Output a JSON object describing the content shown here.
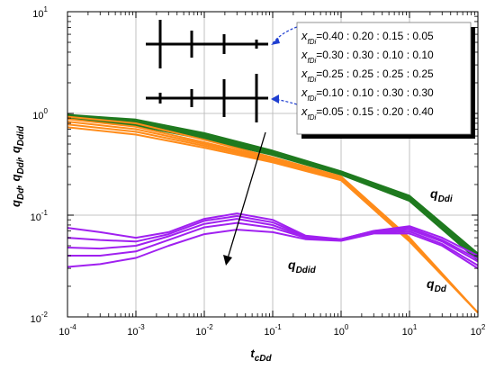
{
  "chart_data": {
    "type": "line",
    "xscale": "log",
    "yscale": "log",
    "xlim": [
      0.0001,
      100
    ],
    "ylim": [
      0.01,
      10
    ],
    "grid": true,
    "xlabel": {
      "main": "t",
      "sub": "cDd"
    },
    "ylabel": [
      {
        "main": "q",
        "sub": "Dd"
      },
      {
        "main": ", q",
        "sub": "Ddi"
      },
      {
        "main": ", q",
        "sub": "Ddid"
      }
    ],
    "x_ticks": [
      {
        "base": "10",
        "exp": "-4"
      },
      {
        "base": "10",
        "exp": "-3"
      },
      {
        "base": "10",
        "exp": "-2"
      },
      {
        "base": "10",
        "exp": "-1"
      },
      {
        "base": "10",
        "exp": "0"
      },
      {
        "base": "10",
        "exp": "1"
      },
      {
        "base": "10",
        "exp": "2"
      }
    ],
    "y_ticks": [
      {
        "base": "10",
        "exp": "-2"
      },
      {
        "base": "10",
        "exp": "-1"
      },
      {
        "base": "10",
        "exp": "0"
      },
      {
        "base": "10",
        "exp": "1"
      }
    ],
    "curve_labels": {
      "q_Ddi": {
        "main": "q",
        "sub": "Ddi"
      },
      "q_Ddid": {
        "main": "q",
        "sub": "Ddid"
      },
      "q_Dd": {
        "main": "q",
        "sub": "Dd"
      }
    },
    "legend": {
      "placement": "top-right",
      "entries": [
        {
          "var": "x",
          "sub": "fDi",
          "values": "=0.40 : 0.20 : 0.15 : 0.05"
        },
        {
          "var": "x",
          "sub": "fDi",
          "values": "=0.30 : 0.30 : 0.10 : 0.10"
        },
        {
          "var": "x",
          "sub": "fDi",
          "values": "=0.25 : 0.25 : 0.25 : 0.25"
        },
        {
          "var": "x",
          "sub": "fDi",
          "values": "=0.10 : 0.10 : 0.30 : 0.30"
        },
        {
          "var": "x",
          "sub": "fDi",
          "values": "=0.05 : 0.15 : 0.20 : 0.40"
        }
      ]
    },
    "colors": {
      "q_Dd": "#ff8c1a",
      "q_Ddi": "#1f7a1f",
      "q_Ddid": "#a020f0",
      "grid": "#b3b3b3",
      "annotation_arrow": "#1f3fd1"
    },
    "series": [
      {
        "group": "q_Ddi",
        "x": [
          0.0001,
          0.001,
          0.01,
          0.1,
          1,
          10,
          100
        ],
        "y": [
          0.97,
          0.87,
          0.64,
          0.43,
          0.27,
          0.155,
          0.042
        ]
      },
      {
        "group": "q_Ddi",
        "x": [
          0.0001,
          0.001,
          0.01,
          0.1,
          1,
          10,
          100
        ],
        "y": [
          0.95,
          0.84,
          0.62,
          0.42,
          0.265,
          0.15,
          0.04
        ]
      },
      {
        "group": "q_Ddi",
        "x": [
          0.0001,
          0.001,
          0.01,
          0.1,
          1,
          10,
          100
        ],
        "y": [
          0.93,
          0.81,
          0.6,
          0.41,
          0.26,
          0.145,
          0.038
        ]
      },
      {
        "group": "q_Ddi",
        "x": [
          0.0001,
          0.001,
          0.01,
          0.1,
          1,
          10,
          100
        ],
        "y": [
          0.91,
          0.78,
          0.58,
          0.4,
          0.255,
          0.142,
          0.037
        ]
      },
      {
        "group": "q_Ddi",
        "x": [
          0.0001,
          0.001,
          0.01,
          0.1,
          1,
          10,
          100
        ],
        "y": [
          0.89,
          0.76,
          0.56,
          0.39,
          0.25,
          0.138,
          0.036
        ]
      },
      {
        "group": "q_Dd",
        "x": [
          0.0001,
          0.001,
          0.01,
          0.1,
          1,
          10,
          100
        ],
        "y": [
          0.93,
          0.8,
          0.55,
          0.37,
          0.24,
          0.06,
          0.011
        ]
      },
      {
        "group": "q_Dd",
        "x": [
          0.0001,
          0.001,
          0.01,
          0.1,
          1,
          10,
          100
        ],
        "y": [
          0.88,
          0.74,
          0.52,
          0.36,
          0.235,
          0.058,
          0.011
        ]
      },
      {
        "group": "q_Dd",
        "x": [
          0.0001,
          0.001,
          0.01,
          0.1,
          1,
          10,
          100
        ],
        "y": [
          0.83,
          0.7,
          0.5,
          0.35,
          0.23,
          0.057,
          0.011
        ]
      },
      {
        "group": "q_Dd",
        "x": [
          0.0001,
          0.001,
          0.01,
          0.1,
          1,
          10,
          100
        ],
        "y": [
          0.78,
          0.66,
          0.48,
          0.34,
          0.225,
          0.056,
          0.011
        ]
      },
      {
        "group": "q_Dd",
        "x": [
          0.0001,
          0.001,
          0.01,
          0.1,
          1,
          10,
          100
        ],
        "y": [
          0.73,
          0.62,
          0.46,
          0.33,
          0.22,
          0.055,
          0.011
        ]
      },
      {
        "group": "q_Ddid",
        "x": [
          0.0001,
          0.0003,
          0.001,
          0.003,
          0.01,
          0.03,
          0.1,
          0.3,
          1,
          3,
          10,
          30,
          100
        ],
        "y": [
          0.075,
          0.068,
          0.06,
          0.068,
          0.092,
          0.104,
          0.09,
          0.063,
          0.058,
          0.07,
          0.078,
          0.06,
          0.04
        ]
      },
      {
        "group": "q_Ddid",
        "x": [
          0.0001,
          0.0003,
          0.001,
          0.003,
          0.01,
          0.03,
          0.1,
          0.3,
          1,
          3,
          10,
          30,
          100
        ],
        "y": [
          0.06,
          0.057,
          0.055,
          0.065,
          0.088,
          0.098,
          0.085,
          0.062,
          0.058,
          0.07,
          0.075,
          0.057,
          0.037
        ]
      },
      {
        "group": "q_Ddid",
        "x": [
          0.0001,
          0.0003,
          0.001,
          0.003,
          0.01,
          0.03,
          0.1,
          0.3,
          1,
          3,
          10,
          30,
          100
        ],
        "y": [
          0.048,
          0.047,
          0.05,
          0.062,
          0.082,
          0.092,
          0.08,
          0.061,
          0.058,
          0.069,
          0.072,
          0.055,
          0.035
        ]
      },
      {
        "group": "q_Ddid",
        "x": [
          0.0001,
          0.0003,
          0.001,
          0.003,
          0.01,
          0.03,
          0.1,
          0.3,
          1,
          3,
          10,
          30,
          100
        ],
        "y": [
          0.04,
          0.04,
          0.044,
          0.057,
          0.076,
          0.084,
          0.075,
          0.06,
          0.057,
          0.068,
          0.069,
          0.052,
          0.032
        ]
      },
      {
        "group": "q_Ddid",
        "x": [
          0.0001,
          0.0003,
          0.001,
          0.003,
          0.01,
          0.03,
          0.1,
          0.3,
          1,
          3,
          10,
          30,
          100
        ],
        "y": [
          0.031,
          0.033,
          0.038,
          0.05,
          0.065,
          0.072,
          0.068,
          0.058,
          0.056,
          0.066,
          0.066,
          0.05,
          0.03
        ]
      }
    ]
  }
}
